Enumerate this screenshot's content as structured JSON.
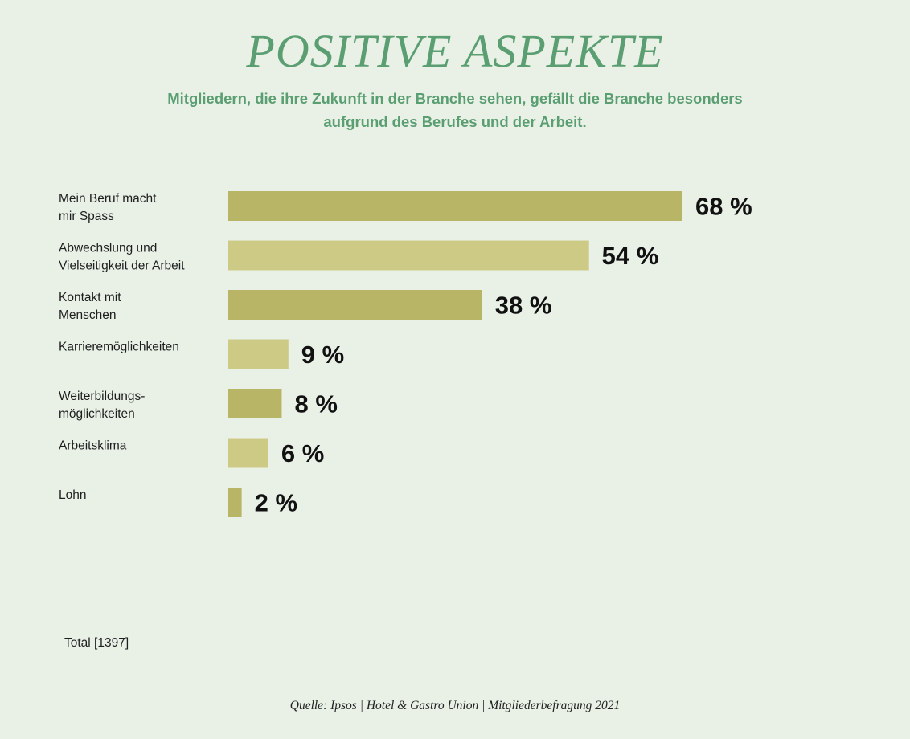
{
  "header": {
    "title": "POSITIVE ASPEKTE",
    "subtitle": "Mitgliedern, die ihre Zukunft in der Branche sehen, gefällt die Branche besonders aufgrund des Berufes und der Arbeit."
  },
  "footer": {
    "total": "Total [1397]",
    "source": "Quelle: Ipsos | Hotel & Gastro Union | Mitgliederbefragung 2021"
  },
  "colors": {
    "title": "#5a9e72",
    "bar_dark": "#b8b566",
    "bar_light": "#cdca86",
    "background": "#e9f1e7"
  },
  "chart_data": {
    "type": "bar",
    "orientation": "horizontal",
    "categories": [
      [
        "Mein Beruf macht",
        "mir Spass"
      ],
      [
        "Abwechslung und",
        "Vielseitigkeit der Arbeit"
      ],
      [
        "Kontakt mit",
        "Menschen"
      ],
      [
        "Karrieremöglichkeiten"
      ],
      [
        "Weiterbildungs-",
        "möglichkeiten"
      ],
      [
        "Arbeitsklima"
      ],
      [
        "Lohn"
      ]
    ],
    "values": [
      68,
      54,
      38,
      9,
      8,
      6,
      2
    ],
    "value_labels": [
      "68 %",
      "54 %",
      "38 %",
      "9 %",
      "8 %",
      "6 %",
      "2 %"
    ],
    "unit": "%",
    "xlim": [
      0,
      100
    ],
    "grid": false,
    "legend": "none"
  }
}
